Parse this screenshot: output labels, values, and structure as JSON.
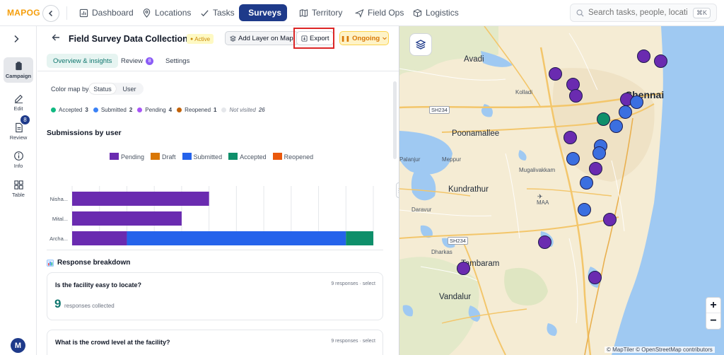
{
  "app": {
    "logo_main": "MAP",
    "logo_accent": "OG"
  },
  "nav": [
    {
      "label": "Dashboard",
      "icon": "bar-chart-icon"
    },
    {
      "label": "Locations",
      "icon": "map-pin-icon"
    },
    {
      "label": "Tasks",
      "icon": "check-icon"
    },
    {
      "label": "Surveys",
      "icon": "clipboard-icon",
      "active": true
    },
    {
      "label": "Territory",
      "icon": "map-icon"
    },
    {
      "label": "Field Ops",
      "icon": "send-icon"
    },
    {
      "label": "Logistics",
      "icon": "box-icon"
    }
  ],
  "search": {
    "placeholder": "Search tasks, people, locations...",
    "shortcut": "⌘K"
  },
  "rail": {
    "items": [
      {
        "label": "Campaign",
        "icon": "clipboard-icon",
        "active": true
      },
      {
        "label": "Edit",
        "icon": "edit-icon"
      },
      {
        "label": "Review",
        "icon": "document-icon",
        "badge": "8"
      },
      {
        "label": "Info",
        "icon": "info-icon"
      },
      {
        "label": "Table",
        "icon": "grid-icon"
      }
    ],
    "avatar": "M"
  },
  "header": {
    "title": "Field Survey Data Collection w...",
    "status": "Active",
    "add_layer": "Add Layer on Map",
    "export": "Export",
    "ongoing": "Ongoing"
  },
  "tabs": [
    {
      "label": "Overview & insights",
      "active": true
    },
    {
      "label": "Review",
      "badge": "8"
    },
    {
      "label": "Settings"
    }
  ],
  "colormap": {
    "label": "Color map by",
    "options": [
      "Status",
      "User"
    ],
    "selected": "Status"
  },
  "status_legend": [
    {
      "label": "Accepted",
      "count": "3",
      "color": "#10b981"
    },
    {
      "label": "Submitted",
      "count": "2",
      "color": "#3b82f6"
    },
    {
      "label": "Pending",
      "count": "4",
      "color": "#a855f7"
    },
    {
      "label": "Reopened",
      "count": "1",
      "color": "#c2630a"
    },
    {
      "label": "Not visited",
      "count": "26",
      "color": "#e5e7eb"
    }
  ],
  "submissions_title": "Submissions by user",
  "chart_data": {
    "type": "bar",
    "orientation": "horizontal",
    "stacked": true,
    "categories": [
      "Nisha...",
      "Mital...",
      "Archa..."
    ],
    "series": [
      {
        "name": "Pending",
        "color": "#6a2bb0",
        "values": [
          5,
          4,
          2
        ]
      },
      {
        "name": "Draft",
        "color": "#d97706",
        "values": [
          0,
          0,
          0
        ]
      },
      {
        "name": "Submitted",
        "color": "#2563eb",
        "values": [
          0,
          0,
          8
        ]
      },
      {
        "name": "Accepted",
        "color": "#0e8f6a",
        "values": [
          0,
          0,
          1
        ]
      },
      {
        "name": "Reopened",
        "color": "#ea580c",
        "values": [
          0,
          0,
          0
        ]
      }
    ],
    "xlim": [
      0,
      11
    ],
    "xticks": [
      "0",
      "1",
      "2",
      "3",
      "4",
      "5",
      "6",
      "7",
      "8",
      "9",
      "10",
      "11"
    ],
    "grid": true,
    "legend": "top"
  },
  "responses": {
    "title": "Response breakdown",
    "cards": [
      {
        "question": "Is the facility easy to locate?",
        "meta": "9 responses · select",
        "count": "9",
        "sub": "responses collected"
      },
      {
        "question": "What is the crowd level at the facility?",
        "meta": "9 responses · select"
      }
    ]
  },
  "map": {
    "labels": [
      {
        "text": "Avadi",
        "class": "mid"
      },
      {
        "text": "Chennai",
        "class": "city"
      },
      {
        "text": "Kolladi",
        "class": "small"
      },
      {
        "text": "Poonamallee",
        "class": "mid"
      },
      {
        "text": "Meppur",
        "class": "small"
      },
      {
        "text": "Palanjur",
        "class": "small"
      },
      {
        "text": "Mugalivakkam",
        "class": "small"
      },
      {
        "text": "Kundrathur",
        "class": "mid"
      },
      {
        "text": "Daravur",
        "class": "small"
      },
      {
        "text": "MAA",
        "class": "small"
      },
      {
        "text": "Dharkas",
        "class": "small"
      },
      {
        "text": "Tambaram",
        "class": "mid"
      },
      {
        "text": "Vandalur",
        "class": "mid"
      }
    ],
    "roads": [
      "SH234",
      "SH234"
    ],
    "attribution": "© MapTiler © OpenStreetMap contributors",
    "zoom_in": "+",
    "zoom_out": "−",
    "pins": [
      {
        "color": "#6a2bb0"
      },
      {
        "color": "#6a2bb0"
      },
      {
        "color": "#6a2bb0"
      },
      {
        "color": "#6a2bb0"
      },
      {
        "color": "#6a2bb0"
      },
      {
        "color": "#0e8f6a"
      },
      {
        "color": "#3b6fe0"
      },
      {
        "color": "#3b6fe0"
      },
      {
        "color": "#3b6fe0"
      },
      {
        "color": "#6a2bb0"
      },
      {
        "color": "#3b6fe0"
      },
      {
        "color": "#3b6fe0"
      },
      {
        "color": "#3b6fe0"
      },
      {
        "color": "#6a2bb0"
      },
      {
        "color": "#3b6fe0"
      },
      {
        "color": "#3b6fe0"
      },
      {
        "color": "#6a2bb0"
      },
      {
        "color": "#6a2bb0"
      },
      {
        "color": "#6a2bb0"
      },
      {
        "color": "#6a2bb0"
      },
      {
        "color": "#6a2bb0"
      }
    ]
  }
}
